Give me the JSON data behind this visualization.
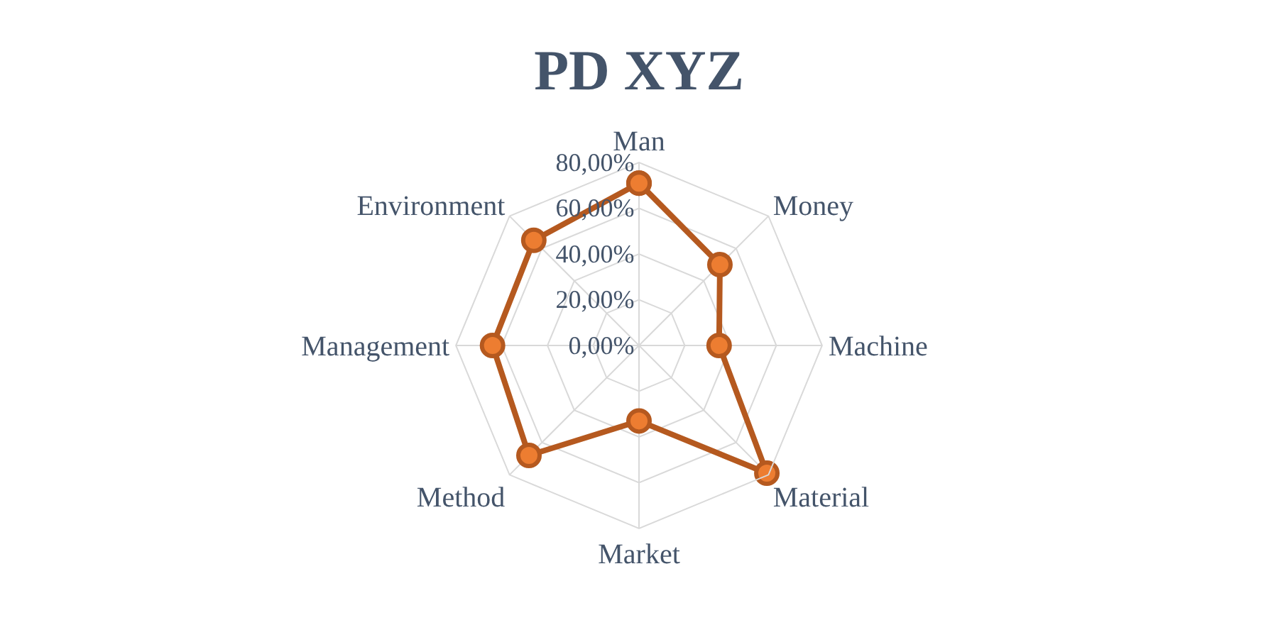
{
  "chart_data": {
    "type": "radar",
    "title": "PD XYZ",
    "categories": [
      "Man",
      "Money",
      "Machine",
      "Material",
      "Market",
      "Method",
      "Management",
      "Environment"
    ],
    "series": [
      {
        "color": "#b5591f",
        "values": [
          71,
          50,
          35,
          79,
          33,
          68,
          64,
          65
        ]
      }
    ],
    "ylim": [
      0,
      80
    ],
    "yticks": [
      {
        "value": 0,
        "label": "0,00%"
      },
      {
        "value": 20,
        "label": "20,00%"
      },
      {
        "value": 40,
        "label": "40,00%"
      },
      {
        "value": 60,
        "label": "60,00%"
      },
      {
        "value": 80,
        "label": "80,00%"
      }
    ],
    "marker": "circle",
    "grid": true
  }
}
